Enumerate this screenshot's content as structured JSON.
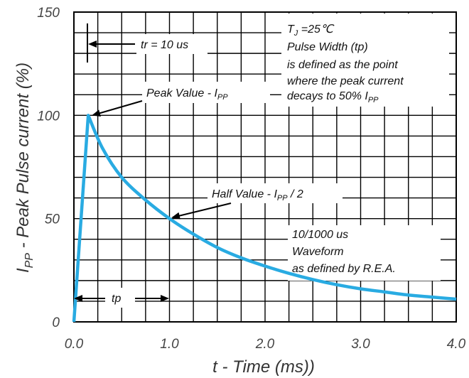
{
  "chart_data": {
    "type": "line",
    "title": "",
    "xlabel": "t - Time (ms))",
    "ylabel_main": "I",
    "ylabel_sub": "PP",
    "ylabel_rest": " - Peak Pulse current (%)",
    "xlim": [
      0,
      4.0
    ],
    "ylim": [
      0,
      150
    ],
    "grid": true,
    "line_color": "#29abe2",
    "x_ticks": [
      {
        "value": 0,
        "label": "0.0"
      },
      {
        "value": 1,
        "label": "1.0"
      },
      {
        "value": 2,
        "label": "2.0"
      },
      {
        "value": 3,
        "label": "3.0"
      },
      {
        "value": 4,
        "label": "4.0"
      }
    ],
    "y_ticks": [
      {
        "value": 0,
        "label": "0"
      },
      {
        "value": 50,
        "label": "50"
      },
      {
        "value": 100,
        "label": "100"
      },
      {
        "value": 150,
        "label": "150"
      }
    ],
    "series": [
      {
        "x": [
          0,
          0.15,
          0.3,
          0.5,
          0.75,
          1.0,
          1.25,
          1.5,
          1.75,
          2.0,
          2.25,
          2.5,
          2.75,
          3.0,
          3.25,
          3.5,
          3.75,
          4.0
        ],
        "y": [
          0,
          100,
          84,
          70,
          59,
          50,
          42.5,
          36,
          31,
          27,
          23.5,
          20.5,
          18,
          16,
          14.5,
          13,
          12,
          11
        ]
      }
    ],
    "annotations": {
      "tr": "tr = 10 us",
      "peak_main": "Peak Value - I",
      "peak_sub": "PP",
      "half_main": "Half Value - I",
      "half_sub": "PP",
      "half_tail": " / 2",
      "tp": "tp",
      "note_line1_main": "T",
      "note_line1_sub": "J",
      "note_line1_rest": " =25℃",
      "note_line2": "Pulse Width (tp)",
      "note_line3": "is defined as the point",
      "note_line4": "where the peak current",
      "note_line5_main": "decays to 50% I",
      "note_line5_sub": "PP",
      "waveform_line1": "10/1000 us",
      "waveform_line2": "Waveform",
      "waveform_line3": "as defined by R.E.A."
    }
  }
}
